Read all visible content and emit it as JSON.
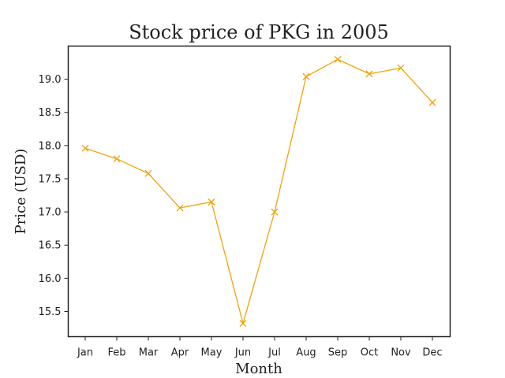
{
  "chart_data": {
    "type": "line",
    "title": "Stock price of PKG in 2005",
    "xlabel": "Month",
    "ylabel": "Price (USD)",
    "categories": [
      "Jan",
      "Feb",
      "Mar",
      "Apr",
      "May",
      "Jun",
      "Jul",
      "Aug",
      "Sep",
      "Oct",
      "Nov",
      "Dec"
    ],
    "series": [
      {
        "values": [
          17.96,
          17.8,
          17.58,
          17.06,
          17.15,
          15.32,
          17.0,
          19.04,
          19.3,
          19.08,
          19.17,
          18.65
        ],
        "color": "#f0a30a",
        "marker": "x"
      }
    ],
    "ylim": [
      15.12,
      19.5
    ],
    "yticks": [
      15.5,
      16.0,
      16.5,
      17.0,
      17.5,
      18.0,
      18.5,
      19.0
    ],
    "grid": false,
    "legend": false
  }
}
